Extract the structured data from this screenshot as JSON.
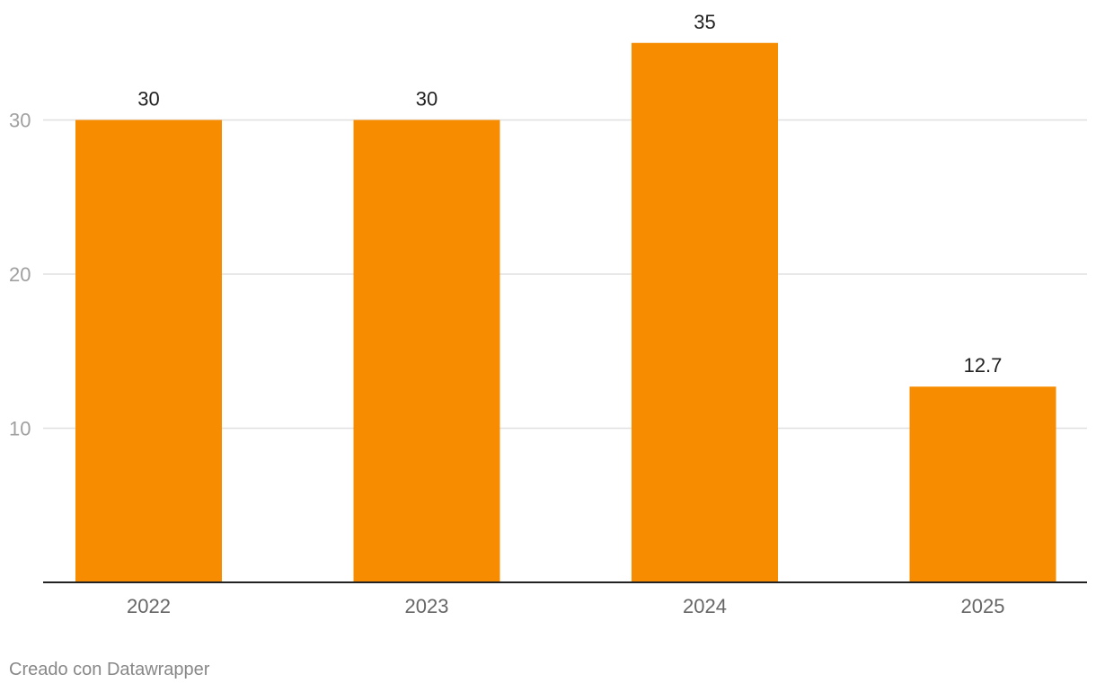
{
  "chart_data": {
    "type": "bar",
    "categories": [
      "2022",
      "2023",
      "2024",
      "2025"
    ],
    "values": [
      30,
      30,
      35,
      12.7
    ],
    "value_labels": [
      "30",
      "30",
      "35",
      "12.7"
    ],
    "yticks": [
      10,
      20,
      30
    ],
    "ylim": [
      0,
      35
    ],
    "grid": true,
    "colors": {
      "bar": "#f78c00",
      "grid": "#e0e0e0",
      "axis": "#222222",
      "tick_label": "#a0a0a0",
      "category_label": "#666666",
      "value_label": "#222222"
    }
  },
  "footer": {
    "credit": "Creado con Datawrapper"
  }
}
